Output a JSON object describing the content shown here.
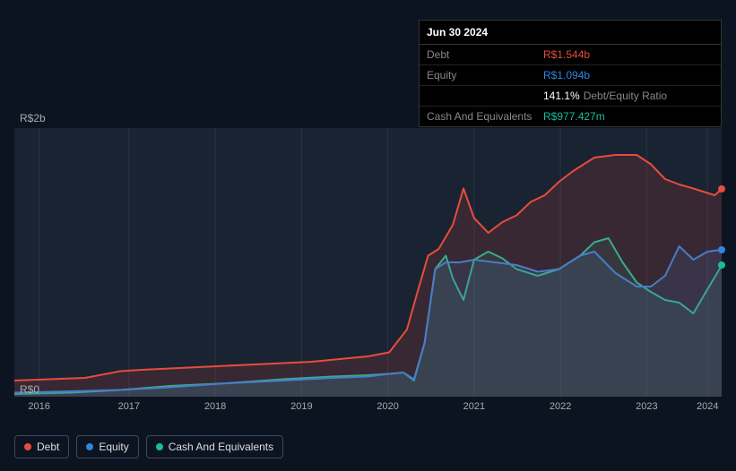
{
  "tooltip": {
    "date": "Jun 30 2024",
    "rows": [
      {
        "label": "Debt",
        "value": "R$1.544b",
        "color": "#e74c3c"
      },
      {
        "label": "Equity",
        "value": "R$1.094b",
        "color": "#2e86de"
      },
      {
        "label": "",
        "value": "141.1%",
        "suffix": "Debt/Equity Ratio",
        "color": "#ffffff"
      },
      {
        "label": "Cash And Equivalents",
        "value": "R$977.427m",
        "color": "#1abc9c"
      }
    ]
  },
  "chart": {
    "type": "area",
    "background_color": "#1a2332",
    "page_background": "#0d1421",
    "grid_color": "#2a3442",
    "ylabel_top": "R$2b",
    "ylabel_bottom": "R$0",
    "ymin": 0,
    "ymax": 2,
    "x_categories": [
      "2016",
      "2017",
      "2018",
      "2019",
      "2020",
      "2021",
      "2022",
      "2023",
      "2024"
    ],
    "x_positions_pct": [
      3.5,
      16.2,
      28.4,
      40.6,
      52.8,
      65.0,
      77.2,
      89.4,
      98.0
    ],
    "series": [
      {
        "name": "Debt",
        "color": "#e74c3c",
        "fill": "rgba(231,76,60,0.15)",
        "line_width": 2,
        "points": [
          [
            0,
            0.12
          ],
          [
            5,
            0.13
          ],
          [
            10,
            0.14
          ],
          [
            15,
            0.19
          ],
          [
            18,
            0.2
          ],
          [
            22,
            0.21
          ],
          [
            26,
            0.22
          ],
          [
            30,
            0.23
          ],
          [
            34,
            0.24
          ],
          [
            38,
            0.25
          ],
          [
            42,
            0.26
          ],
          [
            46,
            0.28
          ],
          [
            50,
            0.3
          ],
          [
            53,
            0.33
          ],
          [
            55.5,
            0.5
          ],
          [
            57,
            0.78
          ],
          [
            58.5,
            1.05
          ],
          [
            60,
            1.1
          ],
          [
            62,
            1.28
          ],
          [
            63.5,
            1.55
          ],
          [
            65,
            1.33
          ],
          [
            67,
            1.22
          ],
          [
            69,
            1.3
          ],
          [
            71,
            1.35
          ],
          [
            73,
            1.45
          ],
          [
            75,
            1.5
          ],
          [
            77,
            1.6
          ],
          [
            79,
            1.68
          ],
          [
            82,
            1.78
          ],
          [
            85,
            1.8
          ],
          [
            88,
            1.8
          ],
          [
            90,
            1.73
          ],
          [
            92,
            1.62
          ],
          [
            94,
            1.58
          ],
          [
            96,
            1.55
          ],
          [
            99,
            1.5
          ],
          [
            100,
            1.544
          ]
        ]
      },
      {
        "name": "Equity",
        "color": "#2e86de",
        "fill": "rgba(46,134,222,0.15)",
        "line_width": 2,
        "points": [
          [
            0,
            0.03
          ],
          [
            8,
            0.04
          ],
          [
            15,
            0.05
          ],
          [
            22,
            0.07
          ],
          [
            30,
            0.1
          ],
          [
            38,
            0.12
          ],
          [
            45,
            0.14
          ],
          [
            50,
            0.15
          ],
          [
            53,
            0.17
          ],
          [
            55,
            0.18
          ],
          [
            56.5,
            0.13
          ],
          [
            58,
            0.4
          ],
          [
            59.5,
            0.95
          ],
          [
            61,
            1.0
          ],
          [
            63,
            1.0
          ],
          [
            65,
            1.02
          ],
          [
            68,
            1.0
          ],
          [
            71,
            0.98
          ],
          [
            74,
            0.93
          ],
          [
            77,
            0.95
          ],
          [
            80,
            1.05
          ],
          [
            82,
            1.08
          ],
          [
            85,
            0.92
          ],
          [
            88,
            0.82
          ],
          [
            90,
            0.82
          ],
          [
            92,
            0.9
          ],
          [
            94,
            1.12
          ],
          [
            96,
            1.02
          ],
          [
            98,
            1.08
          ],
          [
            100,
            1.094
          ]
        ]
      },
      {
        "name": "Cash And Equivalents",
        "color": "#1abc9c",
        "fill": "rgba(26,188,156,0.12)",
        "line_width": 2,
        "points": [
          [
            0,
            0.02
          ],
          [
            8,
            0.03
          ],
          [
            15,
            0.05
          ],
          [
            22,
            0.08
          ],
          [
            30,
            0.1
          ],
          [
            38,
            0.13
          ],
          [
            45,
            0.15
          ],
          [
            50,
            0.16
          ],
          [
            53,
            0.17
          ],
          [
            55,
            0.18
          ],
          [
            56.5,
            0.12
          ],
          [
            58,
            0.4
          ],
          [
            59.5,
            0.95
          ],
          [
            61,
            1.05
          ],
          [
            62,
            0.88
          ],
          [
            63.5,
            0.72
          ],
          [
            65,
            1.02
          ],
          [
            67,
            1.08
          ],
          [
            69,
            1.03
          ],
          [
            71,
            0.95
          ],
          [
            74,
            0.9
          ],
          [
            77,
            0.95
          ],
          [
            80,
            1.05
          ],
          [
            82,
            1.15
          ],
          [
            84,
            1.18
          ],
          [
            86,
            1.0
          ],
          [
            88,
            0.85
          ],
          [
            90,
            0.78
          ],
          [
            92,
            0.72
          ],
          [
            94,
            0.7
          ],
          [
            96,
            0.62
          ],
          [
            98,
            0.8
          ],
          [
            100,
            0.977
          ]
        ]
      }
    ],
    "end_dots": [
      {
        "color": "#e74c3c",
        "y": 1.544
      },
      {
        "color": "#2e86de",
        "y": 1.094
      },
      {
        "color": "#1abc9c",
        "y": 0.977
      }
    ]
  },
  "legend": [
    {
      "label": "Debt",
      "color": "#e74c3c"
    },
    {
      "label": "Equity",
      "color": "#2e86de"
    },
    {
      "label": "Cash And Equivalents",
      "color": "#1abc9c"
    }
  ]
}
